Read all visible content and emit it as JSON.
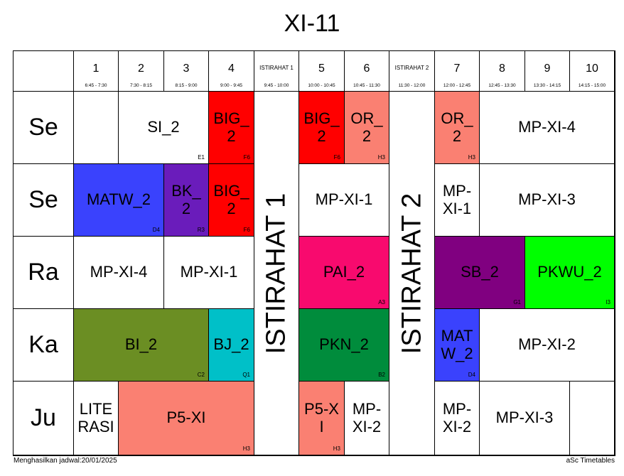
{
  "title": "XI-11",
  "headers": [
    {
      "label": "1",
      "time": "6:45 - 7:30"
    },
    {
      "label": "2",
      "time": "7:30 - 8:15"
    },
    {
      "label": "3",
      "time": "8:15 - 9:00"
    },
    {
      "label": "4",
      "time": "9:00 - 9:45"
    },
    {
      "label": "ISTIRAHAT 1",
      "time": "9:45 - 10:00"
    },
    {
      "label": "5",
      "time": "10:00 - 10:45"
    },
    {
      "label": "6",
      "time": "10:45 - 11:30"
    },
    {
      "label": "ISTIRAHAT 2",
      "time": "11:30 - 12:00"
    },
    {
      "label": "7",
      "time": "12:00 - 12:45"
    },
    {
      "label": "8",
      "time": "12:45 - 13:30"
    },
    {
      "label": "9",
      "time": "13:30 - 14:15"
    },
    {
      "label": "10",
      "time": "14:15 - 15:00"
    }
  ],
  "days": [
    "Se",
    "Se",
    "Ra",
    "Ka",
    "Ju"
  ],
  "breaks": [
    "ISTIRAHAT 1",
    "ISTIRAHAT 2"
  ],
  "cells": [
    {
      "text": "SI_2",
      "room": "E1",
      "color": "#ffffff"
    },
    {
      "text": "BIG_ 2",
      "room": "F6",
      "color": "#ff0000"
    },
    {
      "text": "BIG_ 2",
      "room": "F6",
      "color": "#ff0000"
    },
    {
      "text": "OR_ 2",
      "room": "H3",
      "color": "#fa8072"
    },
    {
      "text": "OR_ 2",
      "room": "H3",
      "color": "#fa8072"
    },
    {
      "text": "MP-XI-4",
      "room": "",
      "color": "#ffffff"
    },
    {
      "text": "MATW_2",
      "room": "D4",
      "color": "#3a42fd"
    },
    {
      "text": "BK_ 2",
      "room": "R3",
      "color": "#6a1cbb"
    },
    {
      "text": "BIG_ 2",
      "room": "F6",
      "color": "#ff0000"
    },
    {
      "text": "MP-XI-1",
      "room": "",
      "color": "#ffffff"
    },
    {
      "text": "MP- XI-1",
      "room": "",
      "color": "#ffffff"
    },
    {
      "text": "MP-XI-3",
      "room": "",
      "color": "#ffffff"
    },
    {
      "text": "MP-XI-4",
      "room": "",
      "color": "#ffffff"
    },
    {
      "text": "MP-XI-1",
      "room": "",
      "color": "#ffffff"
    },
    {
      "text": "PAI_2",
      "room": "A3",
      "color": "#f80a6e"
    },
    {
      "text": "SB_2",
      "room": "G1",
      "color": "#800080"
    },
    {
      "text": "PKWU_2",
      "room": "I3",
      "color": "#00ff00"
    },
    {
      "text": "BI_2",
      "room": "C2",
      "color": "#6b8e23"
    },
    {
      "text": "BJ_2",
      "room": "Q1",
      "color": "#00c0c8"
    },
    {
      "text": "PKN_2",
      "room": "B2",
      "color": "#008c3c"
    },
    {
      "text": "MAT W_2",
      "room": "D4",
      "color": "#3a42fd"
    },
    {
      "text": "MP-XI-2",
      "room": "",
      "color": "#ffffff"
    },
    {
      "text": "LITE RASI",
      "room": "",
      "color": "#ffffff"
    },
    {
      "text": "P5-XI",
      "room": "H3",
      "color": "#fa8072"
    },
    {
      "text": "P5-X I",
      "room": "H3",
      "color": "#fa8072"
    },
    {
      "text": "MP- XI-2",
      "room": "",
      "color": "#ffffff"
    },
    {
      "text": "MP- XI-2",
      "room": "",
      "color": "#ffffff"
    },
    {
      "text": "MP-XI-3",
      "room": "",
      "color": "#ffffff"
    }
  ],
  "footer": {
    "left": "Menghasilkan jadwal:20/01/2025",
    "right": "aSc Timetables"
  }
}
